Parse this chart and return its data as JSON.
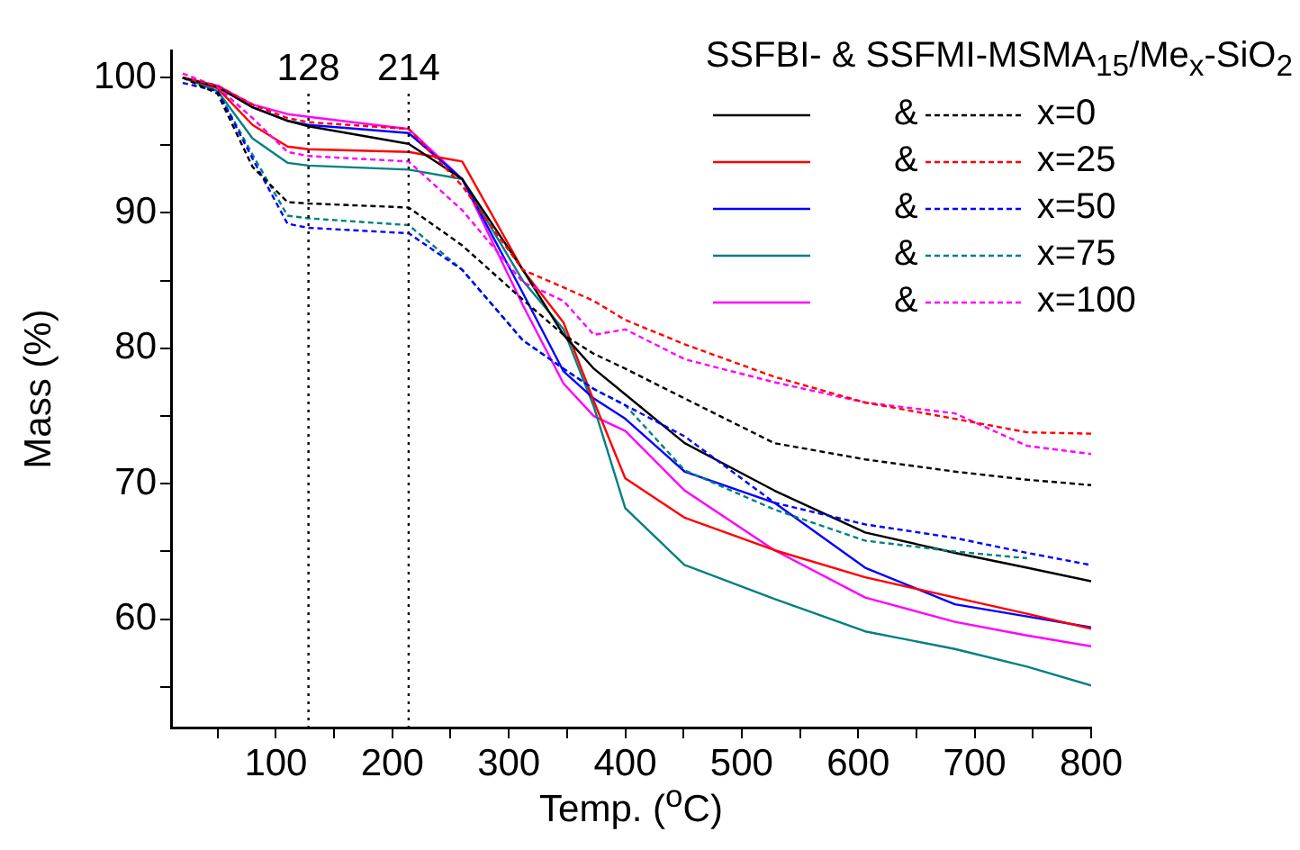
{
  "chart_data": {
    "type": "line",
    "xlabel": "Temp. ($^{o}$C)",
    "ylabel": "Mass (%)",
    "legend_title": "SSFBI- & SSFMI-MSMA$_{15}$/Me$_{x}$-SiO$_{2}$",
    "legend": "top right",
    "marker": "none",
    "grid": false,
    "x": [
      20,
      50,
      80,
      110,
      128,
      214,
      260,
      312,
      347,
      373,
      400,
      451,
      528,
      606,
      683,
      745,
      800
    ],
    "xlim": [
      10,
      800
    ],
    "xticks": [
      {
        "value": 50,
        "label": null
      },
      100,
      {
        "value": 150,
        "label": null
      },
      200,
      {
        "value": 250,
        "label": null
      },
      300,
      {
        "value": 350,
        "label": null
      },
      400,
      {
        "value": 450,
        "label": null
      },
      500,
      {
        "value": 550,
        "label": null
      },
      600,
      {
        "value": 650,
        "label": null
      },
      700,
      {
        "value": 750,
        "label": null
      },
      800
    ],
    "ylim": [
      52,
      102
    ],
    "yticks": [
      {
        "value": 55,
        "label": null
      },
      60,
      {
        "value": 65,
        "label": null
      },
      70,
      {
        "value": 75,
        "label": null
      },
      80,
      {
        "value": 85,
        "label": null
      },
      90,
      {
        "value": 95,
        "label": null
      },
      100
    ],
    "ref_lines": [
      {
        "axis": "x",
        "value": 128,
        "label": "128",
        "line_style": "dotted",
        "color": "#000000"
      },
      {
        "axis": "x",
        "value": 214,
        "label": "214",
        "line_style": "dotted",
        "color": "#000000"
      }
    ],
    "series": [
      {
        "name": "&",
        "color": "#000000",
        "line_style": "solid",
        "values": [
          100,
          99.3,
          97.8,
          96.8,
          96.4,
          95.1,
          92.5,
          85.8,
          81.0,
          78.5,
          76.6,
          73.0,
          69.5,
          66.4,
          64.9,
          63.8,
          62.8
        ]
      },
      {
        "name": "x=0",
        "color": "#000000",
        "line_style": "dashed",
        "values": [
          100,
          98.8,
          93.4,
          90.8,
          90.7,
          90.4,
          87.6,
          83.6,
          81.0,
          79.6,
          78.5,
          76.3,
          73.0,
          71.8,
          70.9,
          70.3,
          69.9
        ]
      },
      {
        "name": "&",
        "color": "#ff0000",
        "line_style": "solid",
        "values": [
          100,
          99.2,
          96.5,
          94.9,
          94.7,
          94.5,
          93.8,
          85.8,
          81.9,
          76.1,
          70.4,
          67.5,
          65.1,
          63.1,
          61.6,
          60.4,
          59.3
        ]
      },
      {
        "name": "x=25",
        "color": "#ff0000",
        "line_style": "dashed",
        "values": [
          100,
          99.4,
          98.0,
          97.0,
          96.7,
          96.2,
          92.0,
          85.8,
          84.5,
          83.5,
          82.1,
          80.3,
          77.9,
          76.0,
          74.8,
          73.8,
          73.7
        ]
      },
      {
        "name": "&",
        "color": "#0000ff",
        "line_style": "solid",
        "values": [
          100,
          99.3,
          97.8,
          96.8,
          96.5,
          95.9,
          92.5,
          84.1,
          78.3,
          76.3,
          74.8,
          70.9,
          68.6,
          63.8,
          61.1,
          60.2,
          59.4
        ]
      },
      {
        "name": "x=50",
        "color": "#0000ff",
        "line_style": "dashed",
        "values": [
          99.6,
          99.0,
          94.0,
          89.2,
          88.9,
          88.5,
          85.8,
          80.6,
          78.5,
          77.0,
          75.8,
          73.5,
          68.6,
          67.0,
          66.0,
          64.9,
          64.0
        ]
      },
      {
        "name": "&",
        "color": "#008080",
        "line_style": "solid",
        "values": [
          100,
          99.0,
          95.5,
          93.7,
          93.5,
          93.2,
          92.5,
          85.0,
          81.4,
          75.7,
          68.2,
          64.0,
          61.5,
          59.1,
          57.8,
          56.5,
          55.1
        ]
      },
      {
        "name": "x=75",
        "color": "#008080",
        "line_style": "dashed",
        "values": [
          100,
          99.0,
          94.3,
          89.8,
          89.6,
          89.1,
          85.8,
          80.6,
          78.5,
          77.0,
          75.8,
          71.0,
          68.1,
          65.8,
          65.0,
          64.5,
          null
        ]
      },
      {
        "name": "&",
        "color": "#ff00ff",
        "line_style": "solid",
        "values": [
          100,
          99.4,
          98.0,
          97.3,
          97.1,
          96.2,
          92.5,
          83.2,
          77.4,
          75.0,
          73.9,
          69.5,
          65.1,
          61.6,
          59.8,
          58.8,
          58.0
        ]
      },
      {
        "name": "x=100",
        "color": "#ff00ff",
        "line_style": "dashed",
        "values": [
          100.3,
          99.3,
          97.0,
          94.5,
          94.2,
          93.8,
          90.2,
          84.9,
          83.5,
          81.0,
          81.4,
          79.2,
          77.5,
          76.0,
          75.2,
          72.8,
          72.2
        ]
      }
    ]
  }
}
